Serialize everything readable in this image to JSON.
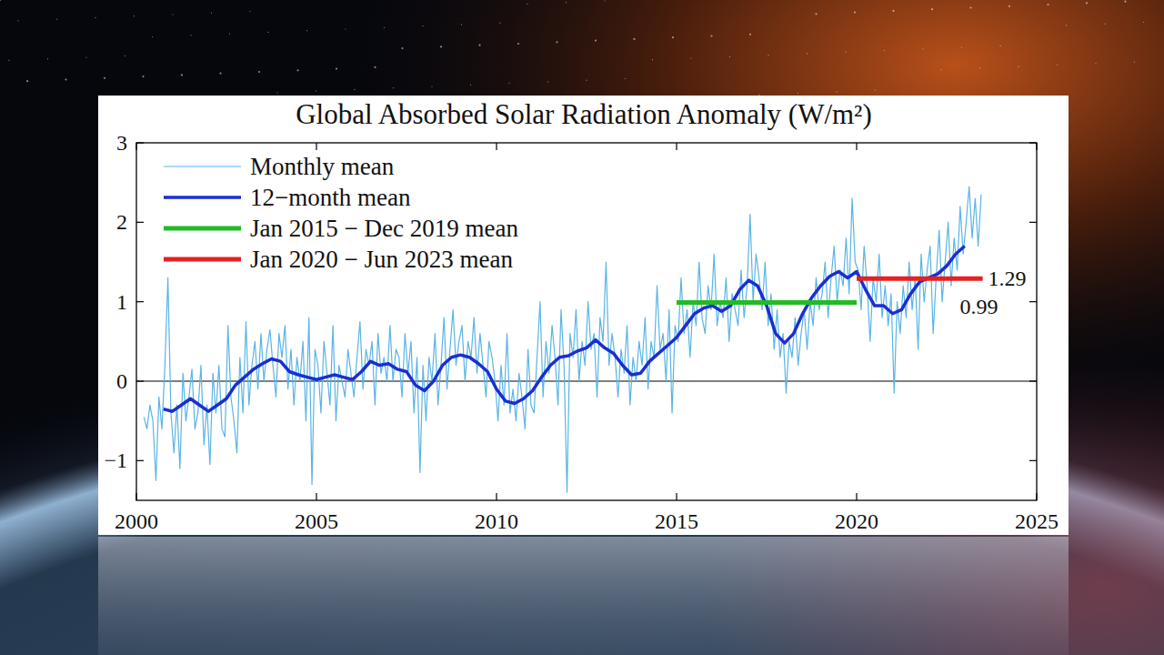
{
  "chart_data": {
    "type": "line",
    "title": "Global Absorbed Solar Radiation Anomaly (W/m²)",
    "xlim": [
      2000,
      2025
    ],
    "xticks": [
      2000,
      2005,
      2010,
      2015,
      2020,
      2025
    ],
    "ylim": [
      -1.5,
      3
    ],
    "yticks": [
      {
        "value": -1,
        "label": "−1"
      },
      0,
      1,
      2,
      3
    ],
    "grid": false,
    "legend": "upper-left",
    "series": [
      {
        "name": "Monthly mean",
        "color": "#5ab4e5",
        "line_style": "thin",
        "x": [
          2000.208,
          2000.292,
          2000.375,
          2000.458,
          2000.542,
          2000.625,
          2000.708,
          2000.792,
          2000.875,
          2000.958,
          2001.042,
          2001.125,
          2001.208,
          2001.292,
          2001.375,
          2001.458,
          2001.542,
          2001.625,
          2001.708,
          2001.792,
          2001.875,
          2001.958,
          2002.042,
          2002.125,
          2002.208,
          2002.292,
          2002.375,
          2002.458,
          2002.542,
          2002.625,
          2002.708,
          2002.792,
          2002.875,
          2002.958,
          2003.042,
          2003.125,
          2003.208,
          2003.292,
          2003.375,
          2003.458,
          2003.542,
          2003.625,
          2003.708,
          2003.792,
          2003.875,
          2003.958,
          2004.042,
          2004.125,
          2004.208,
          2004.292,
          2004.375,
          2004.458,
          2004.542,
          2004.625,
          2004.708,
          2004.792,
          2004.875,
          2004.958,
          2005.042,
          2005.125,
          2005.208,
          2005.292,
          2005.375,
          2005.458,
          2005.542,
          2005.625,
          2005.708,
          2005.792,
          2005.875,
          2005.958,
          2006.042,
          2006.125,
          2006.208,
          2006.292,
          2006.375,
          2006.458,
          2006.542,
          2006.625,
          2006.708,
          2006.792,
          2006.875,
          2006.958,
          2007.042,
          2007.125,
          2007.208,
          2007.292,
          2007.375,
          2007.458,
          2007.542,
          2007.625,
          2007.708,
          2007.792,
          2007.875,
          2007.958,
          2008.042,
          2008.125,
          2008.208,
          2008.292,
          2008.375,
          2008.458,
          2008.542,
          2008.625,
          2008.708,
          2008.792,
          2008.875,
          2008.958,
          2009.042,
          2009.125,
          2009.208,
          2009.292,
          2009.375,
          2009.458,
          2009.542,
          2009.625,
          2009.708,
          2009.792,
          2009.875,
          2009.958,
          2010.042,
          2010.125,
          2010.208,
          2010.292,
          2010.375,
          2010.458,
          2010.542,
          2010.625,
          2010.708,
          2010.792,
          2010.875,
          2010.958,
          2011.042,
          2011.125,
          2011.208,
          2011.292,
          2011.375,
          2011.458,
          2011.542,
          2011.625,
          2011.708,
          2011.792,
          2011.875,
          2011.958,
          2012.042,
          2012.125,
          2012.208,
          2012.292,
          2012.375,
          2012.458,
          2012.542,
          2012.625,
          2012.708,
          2012.792,
          2012.875,
          2012.958,
          2013.042,
          2013.125,
          2013.208,
          2013.292,
          2013.375,
          2013.458,
          2013.542,
          2013.625,
          2013.708,
          2013.792,
          2013.875,
          2013.958,
          2014.042,
          2014.125,
          2014.208,
          2014.292,
          2014.375,
          2014.458,
          2014.542,
          2014.625,
          2014.708,
          2014.792,
          2014.875,
          2014.958,
          2015.042,
          2015.125,
          2015.208,
          2015.292,
          2015.375,
          2015.458,
          2015.542,
          2015.625,
          2015.708,
          2015.792,
          2015.875,
          2015.958,
          2016.042,
          2016.125,
          2016.208,
          2016.292,
          2016.375,
          2016.458,
          2016.542,
          2016.625,
          2016.708,
          2016.792,
          2016.875,
          2016.958,
          2017.042,
          2017.125,
          2017.208,
          2017.292,
          2017.375,
          2017.458,
          2017.542,
          2017.625,
          2017.708,
          2017.792,
          2017.875,
          2017.958,
          2018.042,
          2018.125,
          2018.208,
          2018.292,
          2018.375,
          2018.458,
          2018.542,
          2018.625,
          2018.708,
          2018.792,
          2018.875,
          2018.958,
          2019.042,
          2019.125,
          2019.208,
          2019.292,
          2019.375,
          2019.458,
          2019.542,
          2019.625,
          2019.708,
          2019.792,
          2019.875,
          2019.958,
          2020.042,
          2020.125,
          2020.208,
          2020.292,
          2020.375,
          2020.458,
          2020.542,
          2020.625,
          2020.708,
          2020.792,
          2020.875,
          2020.958,
          2021.042,
          2021.125,
          2021.208,
          2021.292,
          2021.375,
          2021.458,
          2021.542,
          2021.625,
          2021.708,
          2021.792,
          2021.875,
          2021.958,
          2022.042,
          2022.125,
          2022.208,
          2022.292,
          2022.375,
          2022.458,
          2022.542,
          2022.625,
          2022.708,
          2022.792,
          2022.875,
          2022.958,
          2023.042,
          2023.125,
          2023.208,
          2023.292,
          2023.375,
          2023.458
        ],
        "values": [
          -0.45,
          -0.6,
          -0.3,
          -0.5,
          -1.25,
          -0.2,
          -0.6,
          0.2,
          1.3,
          -0.4,
          -0.9,
          -0.3,
          -1.1,
          0.1,
          -0.5,
          -0.2,
          0.15,
          -0.6,
          -0.4,
          0.2,
          -0.8,
          -0.3,
          -1.05,
          0.1,
          -0.4,
          0.2,
          -0.6,
          -0.7,
          0.7,
          -0.2,
          -0.5,
          -0.9,
          0.3,
          -0.4,
          0.75,
          -0.3,
          0.2,
          0.5,
          -0.1,
          0.6,
          0,
          0.4,
          0.65,
          0.2,
          -0.2,
          0.6,
          0.3,
          0.7,
          -0.1,
          0.4,
          -0.3,
          0.3,
          0,
          0.5,
          -0.5,
          0.8,
          -1.3,
          0.4,
          0.2,
          -0.4,
          0.5,
          0.1,
          -0.3,
          0.7,
          -0.5,
          0.2,
          0,
          -0.2,
          0.4,
          0.1,
          -0.2,
          0.3,
          0.75,
          -0.1,
          0.4,
          0.2,
          0.5,
          -0.3,
          0.6,
          0.1,
          0.3,
          0,
          0.7,
          0,
          0.4,
          0.3,
          -0.2,
          0.6,
          0.1,
          0.5,
          -0.4,
          0.3,
          -1.15,
          0.2,
          -0.5,
          0.3,
          0,
          0.6,
          -0.3,
          0.2,
          0.8,
          -0.1,
          0.4,
          0.9,
          0.2,
          0.5,
          0.7,
          0,
          0.5,
          0.3,
          0.8,
          0.1,
          0.6,
          0.2,
          -0.2,
          0.5,
          0.3,
          0,
          -0.5,
          0.2,
          -0.3,
          0.6,
          -0.4,
          -0.1,
          -0.5,
          0.1,
          -0.2,
          -0.6,
          0.4,
          -0.3,
          -0.4,
          0.3,
          1.0,
          -0.2,
          0.5,
          0.1,
          0.7,
          0.3,
          -0.3,
          0.9,
          0.2,
          -1.4,
          0.6,
          0.3,
          0.9,
          0,
          0.5,
          0.2,
          1.0,
          0.4,
          0.6,
          -0.2,
          0.8,
          0.5,
          1.5,
          0.2,
          0.6,
          0.3,
          -0.2,
          0.4,
          0.1,
          0.7,
          -0.3,
          0.3,
          0,
          0.5,
          0.2,
          0.8,
          -0.1,
          0.5,
          0.3,
          1.2,
          0.4,
          0.6,
          0,
          0.9,
          -0.4,
          0.7,
          0.5,
          1.3,
          0.6,
          0.9,
          0.3,
          1.0,
          0.7,
          1.5,
          0.8,
          0.6,
          1.2,
          0.9,
          1.6,
          0.7,
          1.0,
          0.8,
          1.3,
          0.5,
          1.1,
          0.9,
          0.7,
          1.4,
          0.8,
          1.2,
          2.1,
          1.0,
          1.6,
          1.3,
          0.9,
          1.5,
          0.7,
          1.1,
          0.4,
          0.9,
          0.3,
          0.6,
          -0.15,
          0.5,
          0.3,
          0.8,
          0.2,
          0.6,
          0.9,
          0.4,
          1.0,
          0.7,
          1.3,
          0.9,
          1.1,
          1.5,
          0.8,
          1.3,
          1.7,
          1.0,
          1.4,
          1.2,
          1.8,
          1.1,
          2.3,
          1.5,
          1.4,
          0.9,
          1.7,
          1.2,
          0.5,
          1.3,
          1.0,
          1.6,
          0.8,
          1.2,
          0.7,
          1.1,
          -0.15,
          1.0,
          0.6,
          1.2,
          0.8,
          1.5,
          0.9,
          1.3,
          0.4,
          1.6,
          1.0,
          1.4,
          1.7,
          0.6,
          1.3,
          1.9,
          1.0,
          1.5,
          2.0,
          1.2,
          1.8,
          1.4,
          2.2,
          1.6,
          2.0,
          2.45,
          1.8,
          2.3,
          1.7,
          2.35
        ]
      },
      {
        "name": "12−month mean",
        "color": "#1a2fd0",
        "line_style": "bold",
        "x": [
          2000.75,
          2001,
          2001.25,
          2001.5,
          2001.75,
          2002,
          2002.25,
          2002.5,
          2002.75,
          2003,
          2003.25,
          2003.5,
          2003.75,
          2004,
          2004.25,
          2004.5,
          2004.75,
          2005,
          2005.25,
          2005.5,
          2005.75,
          2006,
          2006.25,
          2006.5,
          2006.75,
          2007,
          2007.25,
          2007.5,
          2007.75,
          2008,
          2008.25,
          2008.5,
          2008.75,
          2009,
          2009.25,
          2009.5,
          2009.75,
          2010,
          2010.25,
          2010.5,
          2010.75,
          2011,
          2011.25,
          2011.5,
          2011.75,
          2012,
          2012.25,
          2012.5,
          2012.75,
          2013,
          2013.25,
          2013.5,
          2013.75,
          2014,
          2014.25,
          2014.5,
          2014.75,
          2015,
          2015.25,
          2015.5,
          2015.75,
          2016,
          2016.25,
          2016.5,
          2016.75,
          2017,
          2017.25,
          2017.5,
          2017.75,
          2018,
          2018.25,
          2018.5,
          2018.75,
          2019,
          2019.25,
          2019.5,
          2019.75,
          2020,
          2020.25,
          2020.5,
          2020.75,
          2021,
          2021.25,
          2021.5,
          2021.75,
          2022,
          2022.25,
          2022.5,
          2022.75,
          2023
        ],
        "values": [
          -0.35,
          -0.38,
          -0.3,
          -0.22,
          -0.3,
          -0.38,
          -0.3,
          -0.22,
          -0.05,
          0.05,
          0.15,
          0.22,
          0.28,
          0.25,
          0.12,
          0.08,
          0.05,
          0.02,
          0.05,
          0.08,
          0.05,
          0.02,
          0.12,
          0.25,
          0.2,
          0.22,
          0.15,
          0.12,
          -0.05,
          -0.12,
          0,
          0.2,
          0.3,
          0.33,
          0.3,
          0.22,
          0.12,
          -0.1,
          -0.25,
          -0.28,
          -0.22,
          -0.12,
          0.05,
          0.2,
          0.3,
          0.32,
          0.38,
          0.42,
          0.52,
          0.42,
          0.35,
          0.2,
          0.08,
          0.1,
          0.25,
          0.35,
          0.45,
          0.55,
          0.7,
          0.85,
          0.92,
          0.95,
          0.88,
          0.95,
          1.15,
          1.27,
          1.2,
          0.95,
          0.6,
          0.48,
          0.6,
          0.85,
          1.05,
          1.2,
          1.32,
          1.38,
          1.3,
          1.38,
          1.15,
          0.95,
          0.95,
          0.85,
          0.9,
          1.1,
          1.25,
          1.3,
          1.35,
          1.45,
          1.6,
          1.7
        ]
      },
      {
        "name": "Jan 2015 − Dec 2019 mean",
        "color": "#22bb22",
        "line_style": "heavy",
        "data_labels": true,
        "x": [
          2015,
          2020
        ],
        "values": [
          0.99,
          0.99
        ]
      },
      {
        "name": "Jan 2020 − Jun 2023 mean",
        "color": "#e82020",
        "line_style": "heavy",
        "data_labels": true,
        "x": [
          2020,
          2023.5
        ],
        "values": [
          1.29,
          1.29
        ]
      }
    ]
  }
}
